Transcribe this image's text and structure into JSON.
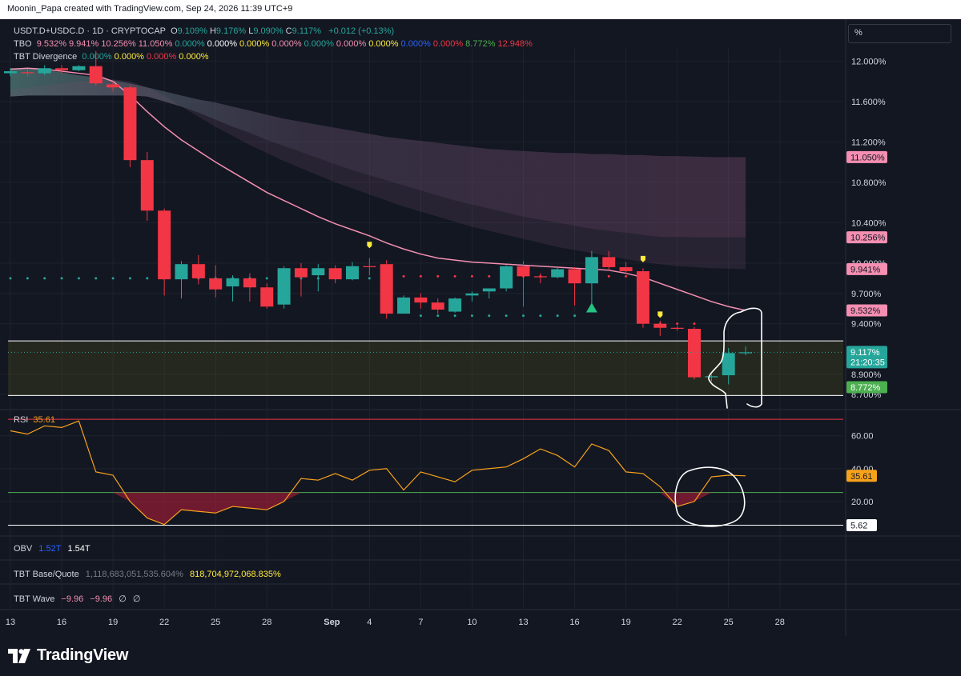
{
  "header": {
    "attribution": "Moonin_Papa created with TradingView.com, Sep 24, 2026 11:39 UTC+9"
  },
  "legend": {
    "symbol": "USDT.D+USDC.D · 1D · CRYPTOCAP",
    "ohlc": [
      {
        "k": "O",
        "v": "9.109%"
      },
      {
        "k": "H",
        "v": "9.176%"
      },
      {
        "k": "L",
        "v": "9.090%"
      },
      {
        "k": "C",
        "v": "9.117%"
      }
    ],
    "change": "+0.012 (+0.13%)",
    "tbo_label": "TBO",
    "tbo_values": [
      {
        "v": "9.532%",
        "c": "#f48fb1"
      },
      {
        "v": "9.941%",
        "c": "#f48fb1"
      },
      {
        "v": "10.256%",
        "c": "#f48fb1"
      },
      {
        "v": "11.050%",
        "c": "#f48fb1"
      },
      {
        "v": "0.000%",
        "c": "#26a69a"
      },
      {
        "v": "0.000%",
        "c": "#ffffff"
      },
      {
        "v": "0.000%",
        "c": "#ffeb3b"
      },
      {
        "v": "0.000%",
        "c": "#f48fb1"
      },
      {
        "v": "0.000%",
        "c": "#26a69a"
      },
      {
        "v": "0.000%",
        "c": "#f48fb1"
      },
      {
        "v": "0.000%",
        "c": "#ffeb3b"
      },
      {
        "v": "0.000%",
        "c": "#2962ff"
      },
      {
        "v": "0.000%",
        "c": "#f23645"
      },
      {
        "v": "8.772%",
        "c": "#4caf50"
      },
      {
        "v": "12.948%",
        "c": "#f23645"
      }
    ],
    "div_label": "TBT Divergence",
    "div_values": [
      {
        "v": "0.000%",
        "c": "#26a69a"
      },
      {
        "v": "0.000%",
        "c": "#ffeb3b"
      },
      {
        "v": "0.000%",
        "c": "#f23645"
      },
      {
        "v": "0.000%",
        "c": "#ffeb3b"
      }
    ]
  },
  "unit_selector": {
    "label": "%"
  },
  "colors": {
    "up": "#26a69a",
    "down": "#f23645",
    "pink": "#f48fb1",
    "rsi": "#f7a21b"
  },
  "chart_data": [
    {
      "type": "candlestick",
      "title": "USDT.D+USDC.D",
      "interval": "1D",
      "y_unit": "%",
      "ylim": [
        8.55,
        12.13
      ],
      "yticks": [
        {
          "v": 12.0,
          "label": "12.000%"
        },
        {
          "v": 11.6,
          "label": "11.600%"
        },
        {
          "v": 11.2,
          "label": "11.200%"
        },
        {
          "v": 10.8,
          "label": "10.800%"
        },
        {
          "v": 10.4,
          "label": "10.400%"
        },
        {
          "v": 10.0,
          "label": "10.000%"
        },
        {
          "v": 9.7,
          "label": "9.700%"
        },
        {
          "v": 9.4,
          "label": "9.400%"
        },
        {
          "v": 8.9,
          "label": "8.900%"
        },
        {
          "v": 8.7,
          "label": "8.700%"
        }
      ],
      "price_tags": [
        {
          "v": 11.05,
          "label": "11.050%",
          "color": "#f48fb1"
        },
        {
          "v": 10.256,
          "label": "10.256%",
          "color": "#f48fb1"
        },
        {
          "v": 9.941,
          "label": "9.941%",
          "color": "#f48fb1"
        },
        {
          "v": 9.532,
          "label": "9.532%",
          "color": "#f48fb1"
        },
        {
          "v": 9.117,
          "label": "9.117%",
          "sub": "21:20:35",
          "color": "#26a69a"
        },
        {
          "v": 8.772,
          "label": "8.772%",
          "color": "#4caf50"
        }
      ],
      "x_labels": [
        "13",
        "16",
        "19",
        "22",
        "25",
        "28",
        "Sep",
        "4",
        "7",
        "10",
        "13",
        "16",
        "19",
        "22",
        "25",
        "28"
      ],
      "x_label_index": [
        0,
        3,
        6,
        9,
        12,
        15,
        18.8,
        21,
        24,
        27,
        30,
        33,
        36,
        39,
        42,
        45
      ],
      "candles": [
        {
          "o": 11.88,
          "h": 11.93,
          "l": 11.85,
          "c": 11.9
        },
        {
          "o": 11.89,
          "h": 11.92,
          "l": 11.85,
          "c": 11.88
        },
        {
          "o": 11.88,
          "h": 11.96,
          "l": 11.86,
          "c": 11.93
        },
        {
          "o": 11.93,
          "h": 11.96,
          "l": 11.88,
          "c": 11.91
        },
        {
          "o": 11.91,
          "h": 11.96,
          "l": 11.9,
          "c": 11.95
        },
        {
          "o": 11.95,
          "h": 12.1,
          "l": 11.76,
          "c": 11.78
        },
        {
          "o": 11.77,
          "h": 11.8,
          "l": 11.7,
          "c": 11.74
        },
        {
          "o": 11.74,
          "h": 11.76,
          "l": 10.95,
          "c": 11.02
        },
        {
          "o": 11.02,
          "h": 11.1,
          "l": 10.42,
          "c": 10.52
        },
        {
          "o": 10.52,
          "h": 10.54,
          "l": 9.68,
          "c": 9.84
        },
        {
          "o": 9.84,
          "h": 10.02,
          "l": 9.65,
          "c": 9.99
        },
        {
          "o": 9.99,
          "h": 10.08,
          "l": 9.79,
          "c": 9.85
        },
        {
          "o": 9.85,
          "h": 9.98,
          "l": 9.66,
          "c": 9.74
        },
        {
          "o": 9.77,
          "h": 9.88,
          "l": 9.62,
          "c": 9.85
        },
        {
          "o": 9.85,
          "h": 9.9,
          "l": 9.62,
          "c": 9.76
        },
        {
          "o": 9.76,
          "h": 9.8,
          "l": 9.55,
          "c": 9.57
        },
        {
          "o": 9.59,
          "h": 9.97,
          "l": 9.55,
          "c": 9.95
        },
        {
          "o": 9.95,
          "h": 10.0,
          "l": 9.67,
          "c": 9.86
        },
        {
          "o": 9.88,
          "h": 9.99,
          "l": 9.72,
          "c": 9.95
        },
        {
          "o": 9.95,
          "h": 9.98,
          "l": 9.8,
          "c": 9.84
        },
        {
          "o": 9.84,
          "h": 10.01,
          "l": 9.83,
          "c": 9.97
        },
        {
          "o": 9.97,
          "h": 10.05,
          "l": 9.88,
          "c": 9.96
        },
        {
          "o": 9.99,
          "h": 10.03,
          "l": 9.45,
          "c": 9.5
        },
        {
          "o": 9.5,
          "h": 9.68,
          "l": 9.5,
          "c": 9.66
        },
        {
          "o": 9.66,
          "h": 9.7,
          "l": 9.55,
          "c": 9.61
        },
        {
          "o": 9.61,
          "h": 9.65,
          "l": 9.5,
          "c": 9.54
        },
        {
          "o": 9.52,
          "h": 9.66,
          "l": 9.51,
          "c": 9.65
        },
        {
          "o": 9.68,
          "h": 9.72,
          "l": 9.62,
          "c": 9.7
        },
        {
          "o": 9.72,
          "h": 9.75,
          "l": 9.65,
          "c": 9.75
        },
        {
          "o": 9.75,
          "h": 9.98,
          "l": 9.72,
          "c": 9.97
        },
        {
          "o": 9.97,
          "h": 10.02,
          "l": 9.57,
          "c": 9.87
        },
        {
          "o": 9.87,
          "h": 9.9,
          "l": 9.8,
          "c": 9.86
        },
        {
          "o": 9.86,
          "h": 9.96,
          "l": 9.85,
          "c": 9.94
        },
        {
          "o": 9.94,
          "h": 9.96,
          "l": 9.58,
          "c": 9.8
        },
        {
          "o": 9.8,
          "h": 10.12,
          "l": 9.58,
          "c": 10.06
        },
        {
          "o": 10.06,
          "h": 10.12,
          "l": 9.93,
          "c": 9.96
        },
        {
          "o": 9.96,
          "h": 10.01,
          "l": 9.9,
          "c": 9.92
        },
        {
          "o": 9.92,
          "h": 9.95,
          "l": 9.36,
          "c": 9.4
        },
        {
          "o": 9.4,
          "h": 9.43,
          "l": 9.28,
          "c": 9.36
        },
        {
          "o": 9.36,
          "h": 9.38,
          "l": 9.33,
          "c": 9.35
        },
        {
          "o": 9.35,
          "h": 9.37,
          "l": 8.85,
          "c": 8.87
        },
        {
          "o": 8.87,
          "h": 8.9,
          "l": 8.83,
          "c": 8.88
        },
        {
          "o": 8.89,
          "h": 9.16,
          "l": 8.8,
          "c": 9.11
        },
        {
          "o": 9.109,
          "h": 9.176,
          "l": 9.09,
          "c": 9.117
        }
      ],
      "band_fast": [
        11.93,
        11.93,
        11.91,
        11.89,
        11.86,
        11.84,
        11.81,
        11.78,
        11.74,
        11.7,
        11.66,
        11.62,
        11.59,
        11.55,
        11.51,
        11.47,
        11.43,
        11.4,
        11.37,
        11.34,
        11.31,
        11.28,
        11.25,
        11.23,
        11.21,
        11.19,
        11.17,
        11.15,
        11.13,
        11.12,
        11.11,
        11.1,
        11.09,
        11.09,
        11.08,
        11.08,
        11.07,
        11.07,
        11.06,
        11.06,
        11.055,
        11.05,
        11.05,
        11.05
      ],
      "band_slow": [
        11.65,
        11.66,
        11.66,
        11.66,
        11.66,
        11.66,
        11.66,
        11.66,
        11.65,
        11.6,
        11.55,
        11.49,
        11.42,
        11.35,
        11.29,
        11.22,
        11.16,
        11.1,
        11.04,
        10.98,
        10.92,
        10.87,
        10.82,
        10.77,
        10.72,
        10.67,
        10.62,
        10.58,
        10.54,
        10.5,
        10.46,
        10.43,
        10.4,
        10.37,
        10.34,
        10.32,
        10.3,
        10.28,
        10.26,
        10.26,
        10.256,
        10.256,
        10.256,
        10.256
      ],
      "band_lower": [
        11.72,
        11.74,
        11.76,
        11.78,
        11.8,
        11.81,
        11.82,
        11.8,
        11.74,
        11.66,
        11.55,
        11.45,
        11.35,
        11.26,
        11.17,
        11.09,
        11.01,
        10.94,
        10.87,
        10.8,
        10.74,
        10.68,
        10.62,
        10.56,
        10.51,
        10.46,
        10.41,
        10.36,
        10.32,
        10.28,
        10.24,
        10.2,
        10.16,
        10.13,
        10.1,
        10.07,
        10.04,
        10.01,
        9.99,
        9.97,
        9.96,
        9.95,
        9.945,
        9.941
      ],
      "ma": [
        11.92,
        11.93,
        11.92,
        11.9,
        11.88,
        11.86,
        11.8,
        11.66,
        11.5,
        11.35,
        11.22,
        11.11,
        11.0,
        10.9,
        10.8,
        10.7,
        10.62,
        10.54,
        10.46,
        10.39,
        10.33,
        10.27,
        10.2,
        10.14,
        10.09,
        10.05,
        10.03,
        10.01,
        10.0,
        9.99,
        9.98,
        9.97,
        9.96,
        9.95,
        9.94,
        9.93,
        9.9,
        9.86,
        9.8,
        9.74,
        9.68,
        9.62,
        9.57,
        9.532
      ],
      "green_dots": {
        "value": 9.85,
        "index": [
          0,
          1,
          2,
          3,
          4,
          5,
          6,
          7,
          8,
          9,
          10,
          11,
          12,
          13,
          14,
          15,
          16,
          17,
          18,
          19,
          20,
          21
        ],
        "value2": 9.48,
        "index2": [
          24,
          25,
          26,
          27,
          28,
          29,
          30,
          31,
          32,
          33
        ]
      },
      "red_dots": {
        "value": 9.87,
        "index": [
          22,
          23,
          24,
          25,
          26,
          27,
          28,
          29,
          30,
          31,
          32,
          33,
          34,
          35,
          36
        ],
        "value2": 9.4,
        "index2": [
          38,
          39,
          40
        ]
      },
      "yellow_markers": [
        {
          "i": 21,
          "v": 10.18
        },
        {
          "i": 37,
          "v": 10.04
        },
        {
          "i": 38,
          "v": 9.49
        }
      ],
      "up_arrow": {
        "i": 34,
        "v": 9.56
      },
      "support_zone": [
        8.69,
        9.23
      ]
    },
    {
      "type": "line",
      "title": "RSI",
      "value_label": "35.61",
      "ylim": [
        0,
        72
      ],
      "yticks": [
        {
          "v": 60,
          "label": "60.00"
        },
        {
          "v": 40,
          "label": "40.00"
        },
        {
          "v": 20,
          "label": "20.00"
        }
      ],
      "levels": [
        {
          "v": 70,
          "color": "#f23645"
        },
        {
          "v": 25.5,
          "color": "#4caf50"
        },
        {
          "v": 5.62,
          "color": "#ffffff"
        }
      ],
      "price_tags": [
        {
          "v": 35.61,
          "label": "35.61",
          "color": "#f7a21b"
        },
        {
          "v": 5.62,
          "label": "5.62",
          "color": "#ffffff"
        }
      ],
      "values": [
        63,
        61,
        66,
        65,
        69,
        38,
        36,
        20,
        10,
        6,
        15,
        14,
        13,
        17,
        16,
        15,
        20,
        34,
        33,
        37,
        33,
        39,
        40,
        27,
        38,
        35,
        32,
        39,
        40,
        41,
        46,
        52,
        48,
        41,
        55,
        51,
        38,
        37,
        29,
        17,
        20,
        35,
        36,
        35.61
      ]
    }
  ],
  "panes": {
    "obv": {
      "label": "OBV",
      "v1": "1.52T",
      "v2": "1.54T"
    },
    "base_quote": {
      "label": "TBT Base/Quote",
      "v1": "1,118,683,051,535.604%",
      "v2": "818,704,972,068.835%"
    },
    "wave": {
      "label": "TBT Wave",
      "v1": "−9.96",
      "v2": "−9.96",
      "v3": "∅",
      "v4": "∅"
    }
  },
  "brand": {
    "name": "TradingView"
  }
}
